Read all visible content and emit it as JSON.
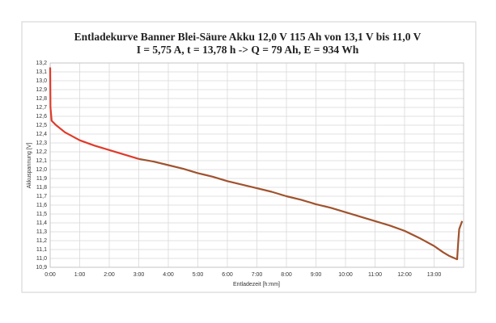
{
  "chart_data": {
    "type": "line",
    "title": "Entladekurve Banner Blei-Säure Akku 12,0 V 115 Ah von 13,1 V bis 11,0 V",
    "subtitle": "I = 5,75 A, t = 13,78 h -> Q = 79 Ah, E = 934 Wh",
    "x_label": "Entladezeit [h:mm]",
    "y_label": "Akkuspannung [V]",
    "grid": true,
    "xlim": [
      0,
      14
    ],
    "ylim": [
      10.9,
      13.2
    ],
    "xticks": [
      {
        "value": 0,
        "label": "0:00"
      },
      {
        "value": 1,
        "label": "1:00"
      },
      {
        "value": 2,
        "label": "2:00"
      },
      {
        "value": 3,
        "label": "3:00"
      },
      {
        "value": 4,
        "label": "4:00"
      },
      {
        "value": 5,
        "label": "5:00"
      },
      {
        "value": 6,
        "label": "6:00"
      },
      {
        "value": 7,
        "label": "7:00"
      },
      {
        "value": 8,
        "label": "8:00"
      },
      {
        "value": 9,
        "label": "9:00"
      },
      {
        "value": 10,
        "label": "10:00"
      },
      {
        "value": 11,
        "label": "11:00"
      },
      {
        "value": 12,
        "label": "12:00"
      },
      {
        "value": 13,
        "label": "13:00"
      }
    ],
    "yticks": [
      {
        "value": 10.9,
        "label": "10,9"
      },
      {
        "value": 11.0,
        "label": "11,0"
      },
      {
        "value": 11.1,
        "label": "11,1"
      },
      {
        "value": 11.2,
        "label": "11,2"
      },
      {
        "value": 11.3,
        "label": "11,3"
      },
      {
        "value": 11.4,
        "label": "11,4"
      },
      {
        "value": 11.5,
        "label": "11,5"
      },
      {
        "value": 11.6,
        "label": "11,6"
      },
      {
        "value": 11.7,
        "label": "11,7"
      },
      {
        "value": 11.8,
        "label": "11,8"
      },
      {
        "value": 11.9,
        "label": "11,9"
      },
      {
        "value": 12.0,
        "label": "12,0"
      },
      {
        "value": 12.1,
        "label": "12,1"
      },
      {
        "value": 12.2,
        "label": "12,2"
      },
      {
        "value": 12.3,
        "label": "12,3"
      },
      {
        "value": 12.4,
        "label": "12,4"
      },
      {
        "value": 12.5,
        "label": "12,5"
      },
      {
        "value": 12.6,
        "label": "12,6"
      },
      {
        "value": 12.7,
        "label": "12,7"
      },
      {
        "value": 12.8,
        "label": "12,8"
      },
      {
        "value": 12.9,
        "label": "12,9"
      },
      {
        "value": 13.0,
        "label": "13,0"
      },
      {
        "value": 13.1,
        "label": "13,1"
      },
      {
        "value": 13.2,
        "label": "13,2"
      }
    ],
    "series": [
      {
        "color": "#e03a2a",
        "x": [
          0,
          0.01,
          0.05,
          0.2,
          0.5,
          1,
          1.5,
          2,
          2.5,
          3
        ],
        "values": [
          13.15,
          12.7,
          12.55,
          12.5,
          12.42,
          12.33,
          12.27,
          12.22,
          12.17,
          12.12
        ]
      },
      {
        "color": "#a0522d",
        "x": [
          3,
          3.5,
          4,
          4.5,
          5,
          5.5,
          6,
          6.5,
          7,
          7.5,
          8,
          8.5,
          9,
          9.5,
          10,
          10.5,
          11,
          11.5,
          12,
          12.5,
          13,
          13.3,
          13.5,
          13.78,
          13.82,
          13.85,
          13.95
        ],
        "values": [
          12.12,
          12.09,
          12.05,
          12.01,
          11.96,
          11.92,
          11.87,
          11.83,
          11.79,
          11.75,
          11.7,
          11.66,
          11.61,
          11.57,
          11.52,
          11.47,
          11.42,
          11.37,
          11.31,
          11.23,
          11.14,
          11.07,
          11.03,
          10.99,
          11.2,
          11.33,
          11.42
        ]
      }
    ]
  }
}
